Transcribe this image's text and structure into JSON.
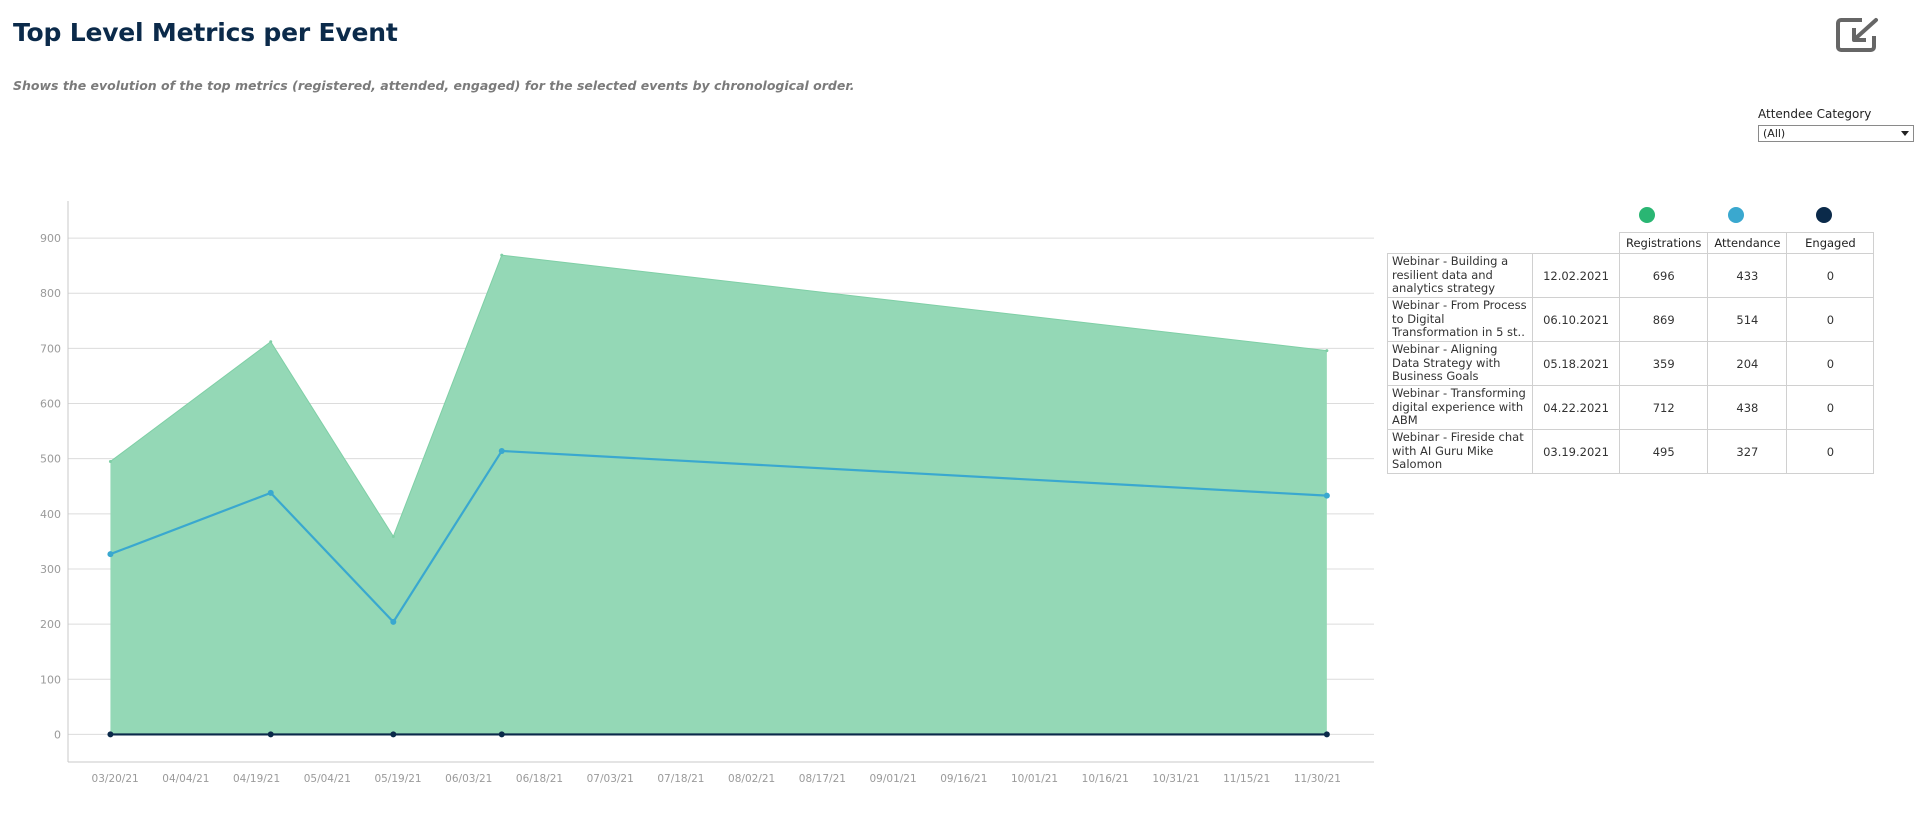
{
  "header": {
    "title": "Top Level Metrics per Event",
    "subtitle": "Shows the evolution of the top metrics (registered, attended, engaged) for the selected events by chronological order."
  },
  "filter": {
    "label": "Attendee Category",
    "value": "(All)"
  },
  "icons": {
    "export": "export-icon"
  },
  "colors": {
    "registrations": "#2ab673",
    "registrations_fill": "#94d8b6",
    "attendance": "#3aa8cf",
    "engaged": "#0b2a4a"
  },
  "chart_data": {
    "type": "area",
    "y_ticks": [
      0,
      100,
      200,
      300,
      400,
      500,
      600,
      700,
      800,
      900
    ],
    "ylim": [
      -50,
      960
    ],
    "x_ticks": [
      "03/20/21",
      "04/04/21",
      "04/19/21",
      "05/04/21",
      "05/19/21",
      "06/03/21",
      "06/18/21",
      "07/03/21",
      "07/18/21",
      "08/02/21",
      "08/17/21",
      "09/01/21",
      "09/16/21",
      "10/01/21",
      "10/16/21",
      "10/31/21",
      "11/15/21",
      "11/30/21"
    ],
    "xlim": [
      "2021-03-10",
      "2021-12-12"
    ],
    "x": [
      "2021-03-19",
      "2021-04-22",
      "2021-05-18",
      "2021-06-10",
      "2021-12-02"
    ],
    "series": [
      {
        "values": [
          495,
          712,
          359,
          869,
          696
        ]
      },
      {
        "values": [
          327,
          438,
          204,
          514,
          433
        ]
      },
      {
        "values": [
          0,
          0,
          0,
          0,
          0
        ]
      }
    ]
  },
  "table": {
    "columns": [
      "Registrations",
      "Attendance",
      "Engaged"
    ],
    "rows": [
      {
        "event": "Webinar - Building a resilient data and analytics strategy",
        "date": "12.02.2021",
        "registrations": "696",
        "attendance": "433",
        "engaged": "0"
      },
      {
        "event": "Webinar - From Process to Digital Transformation in 5 st..",
        "date": "06.10.2021",
        "registrations": "869",
        "attendance": "514",
        "engaged": "0"
      },
      {
        "event": "Webinar - Aligning Data Strategy with Business Goals",
        "date": "05.18.2021",
        "registrations": "359",
        "attendance": "204",
        "engaged": "0"
      },
      {
        "event": "Webinar - Transforming digital experience with ABM",
        "date": "04.22.2021",
        "registrations": "712",
        "attendance": "438",
        "engaged": "0"
      },
      {
        "event": "Webinar - Fireside chat with AI Guru Mike Salomon",
        "date": "03.19.2021",
        "registrations": "495",
        "attendance": "327",
        "engaged": "0"
      }
    ]
  }
}
